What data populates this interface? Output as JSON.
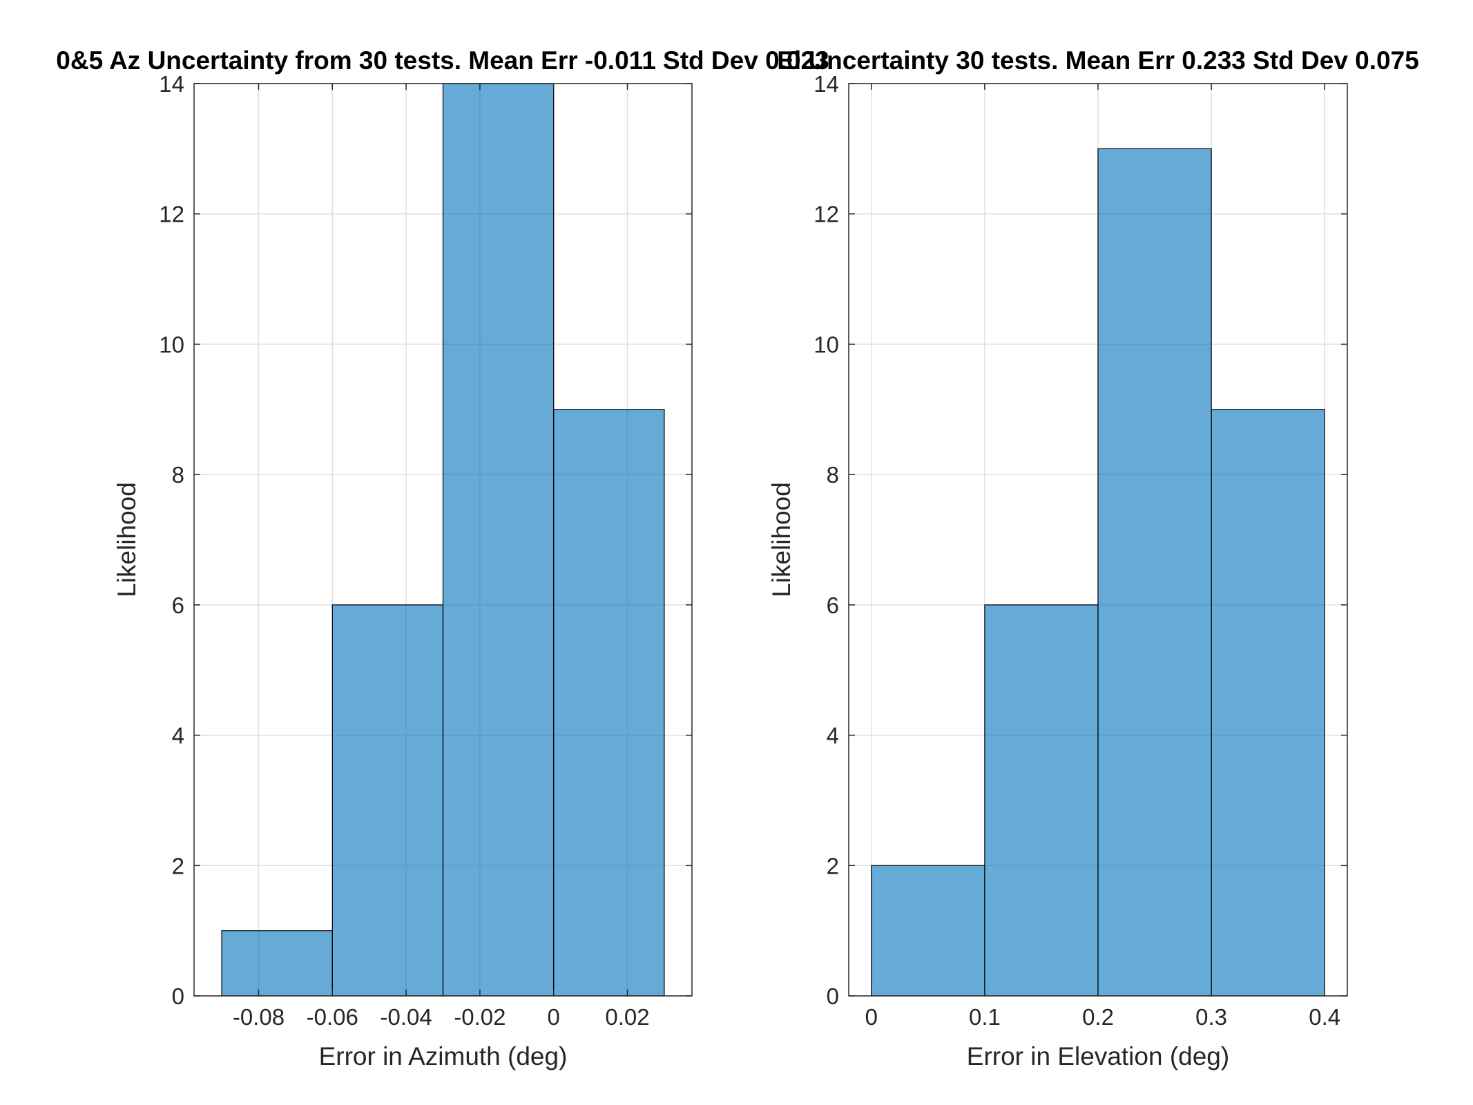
{
  "chart_data": [
    {
      "type": "bar",
      "title": "0&5 Az Uncertainty from 30 tests. Mean Err -0.011 Std Dev 0.023",
      "xlabel": "Error in Azimuth (deg)",
      "ylabel": "Likelihood",
      "xlim": [
        -0.0975,
        0.0375
      ],
      "ylim": [
        0,
        14
      ],
      "xticks": [
        -0.08,
        -0.06,
        -0.04,
        -0.02,
        0,
        0.02
      ],
      "xtick_labels": [
        "-0.08",
        "-0.06",
        "-0.04",
        "-0.02",
        "0",
        "0.02"
      ],
      "yticks": [
        0,
        2,
        4,
        6,
        8,
        10,
        12,
        14
      ],
      "ytick_labels": [
        "0",
        "2",
        "4",
        "6",
        "8",
        "10",
        "12",
        "14"
      ],
      "bin_edges": [
        -0.09,
        -0.06,
        -0.03,
        0,
        0.03
      ],
      "values": [
        1,
        6,
        14,
        9
      ],
      "grid": true,
      "bar_color": "#0072BD"
    },
    {
      "type": "bar",
      "title": "El Uncertainty 30 tests. Mean Err 0.233 Std Dev 0.075",
      "xlabel": "Error in Elevation (deg)",
      "ylabel": "Likelihood",
      "xlim": [
        -0.02,
        0.42
      ],
      "ylim": [
        0,
        14
      ],
      "xticks": [
        0,
        0.1,
        0.2,
        0.3,
        0.4
      ],
      "xtick_labels": [
        "0",
        "0.1",
        "0.2",
        "0.3",
        "0.4"
      ],
      "yticks": [
        0,
        2,
        4,
        6,
        8,
        10,
        12,
        14
      ],
      "ytick_labels": [
        "0",
        "2",
        "4",
        "6",
        "8",
        "10",
        "12",
        "14"
      ],
      "bin_edges": [
        0,
        0.1,
        0.2,
        0.3,
        0.4
      ],
      "values": [
        2,
        6,
        13,
        9
      ],
      "grid": true,
      "bar_color": "#0072BD"
    }
  ]
}
